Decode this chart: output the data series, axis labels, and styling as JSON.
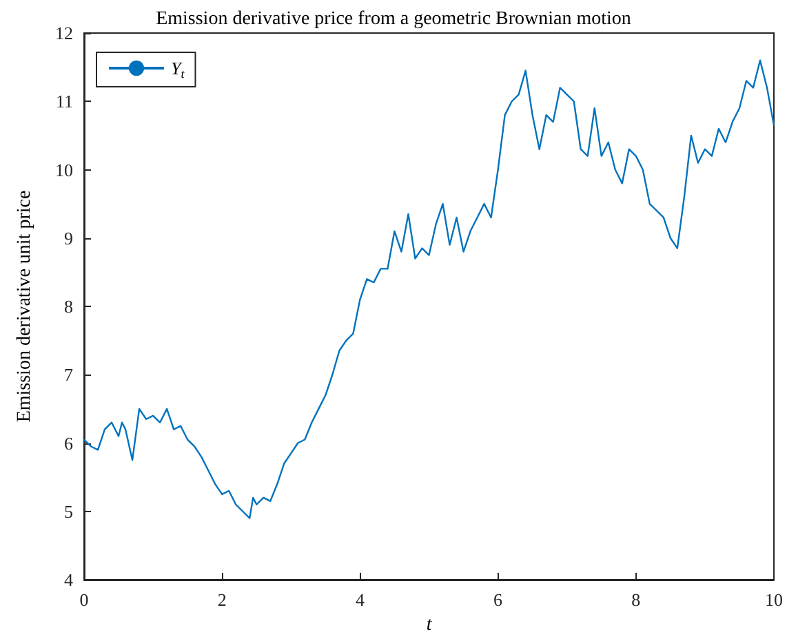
{
  "chart_data": {
    "type": "line",
    "title": "Emission derivative price from a geometric Brownian motion",
    "xlabel": "t",
    "ylabel": "Emission derivative unit price",
    "x": [
      0,
      0.1,
      0.2,
      0.3,
      0.4,
      0.5,
      0.55,
      0.6,
      0.7,
      0.8,
      0.9,
      1,
      1.1,
      1.2,
      1.3,
      1.4,
      1.5,
      1.6,
      1.7,
      1.8,
      1.9,
      2,
      2.1,
      2.2,
      2.3,
      2.4,
      2.45,
      2.5,
      2.6,
      2.7,
      2.8,
      2.9,
      3,
      3.1,
      3.2,
      3.3,
      3.4,
      3.5,
      3.6,
      3.7,
      3.8,
      3.9,
      4,
      4.1,
      4.2,
      4.3,
      4.4,
      4.5,
      4.6,
      4.7,
      4.8,
      4.9,
      5,
      5.1,
      5.2,
      5.3,
      5.4,
      5.5,
      5.6,
      5.7,
      5.8,
      5.9,
      6,
      6.1,
      6.2,
      6.3,
      6.4,
      6.5,
      6.6,
      6.7,
      6.8,
      6.9,
      7,
      7.1,
      7.2,
      7.3,
      7.4,
      7.5,
      7.6,
      7.7,
      7.8,
      7.9,
      8,
      8.1,
      8.2,
      8.4,
      8.5,
      8.6,
      8.7,
      8.8,
      8.9,
      9,
      9.1,
      9.2,
      9.3,
      9.4,
      9.5,
      9.6,
      9.7,
      9.8,
      9.9,
      10
    ],
    "series": [
      {
        "name": "Y$_{t}$",
        "color": "#0072bd",
        "values": [
          6.05,
          5.95,
          5.9,
          6.2,
          6.3,
          6.1,
          6.3,
          6.2,
          5.75,
          6.5,
          6.35,
          6.4,
          6.3,
          6.5,
          6.2,
          6.25,
          6.05,
          5.95,
          5.8,
          5.6,
          5.4,
          5.25,
          5.3,
          5.1,
          5,
          4.9,
          5.2,
          5.1,
          5.2,
          5.15,
          5.4,
          5.7,
          5.85,
          6,
          6.05,
          6.3,
          6.5,
          6.7,
          7,
          7.35,
          7.5,
          7.6,
          8.1,
          8.4,
          8.35,
          8.55,
          8.55,
          9.1,
          8.8,
          9.35,
          8.7,
          8.85,
          8.75,
          9.2,
          9.5,
          8.9,
          9.3,
          8.8,
          9.1,
          9.3,
          9.5,
          9.3,
          10,
          10.8,
          11,
          11.1,
          11.45,
          10.8,
          10.3,
          10.8,
          10.7,
          11.2,
          11.1,
          11,
          10.3,
          10.2,
          10.9,
          10.2,
          10.4,
          10,
          9.8,
          10.3,
          10.2,
          10,
          9.5,
          9.3,
          9,
          8.85,
          9.6,
          10.5,
          10.1,
          10.3,
          10.2,
          10.6,
          10.4,
          10.7,
          10.9,
          11.3,
          11.2,
          11.6,
          11.2,
          10.65
        ]
      }
    ],
    "xlim": [
      0,
      10
    ],
    "xticks": [
      0,
      2,
      4,
      6,
      8,
      10
    ],
    "ylim": [
      4,
      12
    ],
    "yticks": [
      4,
      5,
      6,
      7,
      8,
      9,
      10,
      11,
      12
    ],
    "grid": false,
    "legend": "top left",
    "marker": "none",
    "line_style": "solid"
  }
}
